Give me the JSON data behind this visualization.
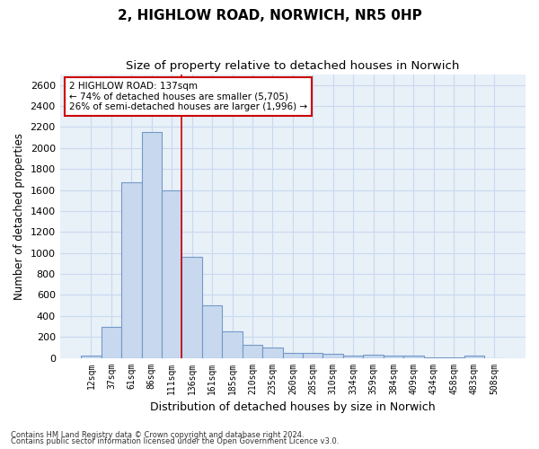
{
  "title": "2, HIGHLOW ROAD, NORWICH, NR5 0HP",
  "subtitle": "Size of property relative to detached houses in Norwich",
  "xlabel": "Distribution of detached houses by size in Norwich",
  "ylabel": "Number of detached properties",
  "categories": [
    "12sqm",
    "37sqm",
    "61sqm",
    "86sqm",
    "111sqm",
    "136sqm",
    "161sqm",
    "185sqm",
    "210sqm",
    "235sqm",
    "260sqm",
    "285sqm",
    "310sqm",
    "334sqm",
    "359sqm",
    "384sqm",
    "409sqm",
    "434sqm",
    "458sqm",
    "483sqm",
    "508sqm"
  ],
  "values": [
    25,
    300,
    1670,
    2150,
    1600,
    960,
    505,
    250,
    125,
    100,
    50,
    50,
    35,
    20,
    30,
    20,
    25,
    5,
    5,
    25,
    0
  ],
  "bar_facecolor": "#c8d9ef",
  "bar_edgecolor": "#7399c6",
  "vline_x": 4.5,
  "vline_color": "#cc0000",
  "annotation_text": "2 HIGHLOW ROAD: 137sqm\n← 74% of detached houses are smaller (5,705)\n26% of semi-detached houses are larger (1,996) →",
  "annotation_box_facecolor": "#ffffff",
  "annotation_box_edgecolor": "#cc0000",
  "ylim": [
    0,
    2700
  ],
  "yticks": [
    0,
    200,
    400,
    600,
    800,
    1000,
    1200,
    1400,
    1600,
    1800,
    2000,
    2200,
    2400,
    2600
  ],
  "grid_color": "#c8d9ef",
  "background_color": "#e8f0f8",
  "plot_bg_color": "#e8f0f8",
  "title_fontsize": 11,
  "subtitle_fontsize": 9.5,
  "xlabel_fontsize": 9,
  "ylabel_fontsize": 8.5,
  "footnote1": "Contains HM Land Registry data © Crown copyright and database right 2024.",
  "footnote2": "Contains public sector information licensed under the Open Government Licence v3.0."
}
